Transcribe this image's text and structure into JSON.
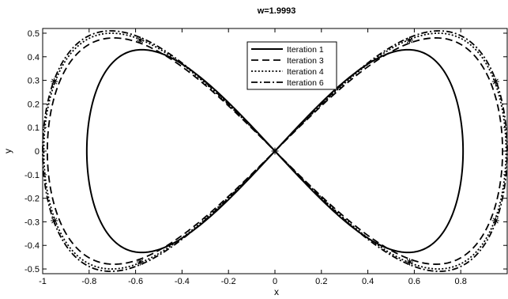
{
  "chart_data": {
    "type": "line",
    "title": "w=1.9993",
    "xlabel": "x",
    "ylabel": "y",
    "xlim": [
      -1,
      1
    ],
    "ylim": [
      -0.52,
      0.52
    ],
    "xticks": [
      -1,
      -0.8,
      -0.6,
      -0.4,
      -0.2,
      0,
      0.2,
      0.4,
      0.6,
      0.8
    ],
    "xtick_labels": [
      "-1",
      "-0.8",
      "-0.6",
      "-0.4",
      "-0.2",
      "0",
      "0.2",
      "0.4",
      "0.6",
      "0.8"
    ],
    "yticks": [
      -0.5,
      -0.4,
      -0.3,
      -0.2,
      -0.1,
      0,
      0.1,
      0.2,
      0.3,
      0.4,
      0.5
    ],
    "ytick_labels": [
      "-0.5",
      "-0.4",
      "-0.3",
      "-0.2",
      "-0.1",
      "0",
      "0.1",
      "0.2",
      "0.3",
      "0.4",
      "0.5"
    ],
    "grid": false,
    "legend_position": "top-right",
    "series": [
      {
        "name": "Iteration 1",
        "line_style": "solid",
        "amplitude_x": 0.81,
        "amplitude_y": 0.43,
        "tilt": 0.42
      },
      {
        "name": "Iteration 3",
        "line_style": "dashed",
        "amplitude_x": 0.98,
        "amplitude_y": 0.48,
        "tilt": 0.21
      },
      {
        "name": "Iteration 4",
        "line_style": "dotted",
        "amplitude_x": 0.995,
        "amplitude_y": 0.5,
        "tilt": 0.12
      },
      {
        "name": "Iteration 6",
        "line_style": "dash-dot",
        "amplitude_x": 1.0,
        "amplitude_y": 0.51,
        "tilt": 0.08
      }
    ],
    "markers": [
      {
        "x": -0.95,
        "y": 0.295
      },
      {
        "x": -0.58,
        "y": 0.47
      },
      {
        "x": 0.58,
        "y": 0.47
      },
      {
        "x": 0.95,
        "y": 0.295
      },
      {
        "x": -0.95,
        "y": -0.295
      },
      {
        "x": -0.58,
        "y": -0.47
      },
      {
        "x": 0.58,
        "y": -0.47
      },
      {
        "x": 0.95,
        "y": -0.295
      },
      {
        "x": 0,
        "y": 0
      }
    ],
    "marker_symbol": "*"
  }
}
